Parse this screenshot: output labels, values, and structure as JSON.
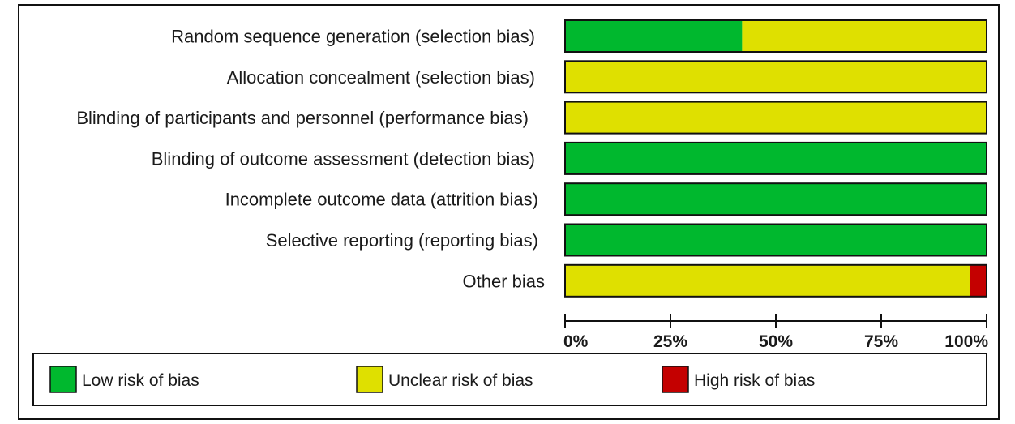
{
  "chart_data": {
    "type": "bar",
    "orientation": "horizontal",
    "stacked": true,
    "value_unit": "percent",
    "categories": [
      "Random sequence generation (selection bias)",
      "Allocation concealment (selection bias)",
      "Blinding of participants and personnel (performance bias)",
      "Blinding of outcome assessment (detection bias)",
      "Incomplete outcome data (attrition bias)",
      "Selective reporting (reporting bias)",
      "Other bias"
    ],
    "series": [
      {
        "name": "Low risk of bias",
        "color": "#00b82e",
        "values": [
          42,
          0,
          0,
          100,
          100,
          100,
          0
        ]
      },
      {
        "name": "Unclear risk of bias",
        "color": "#dfe000",
        "values": [
          58,
          100,
          100,
          0,
          0,
          0,
          96
        ]
      },
      {
        "name": "High risk of bias",
        "color": "#c40000",
        "values": [
          0,
          0,
          0,
          0,
          0,
          0,
          4
        ]
      }
    ],
    "xlim": [
      0,
      100
    ],
    "xticks": [
      "0%",
      "25%",
      "50%",
      "75%",
      "100%"
    ],
    "grid": false,
    "legend_position": "bottom"
  }
}
